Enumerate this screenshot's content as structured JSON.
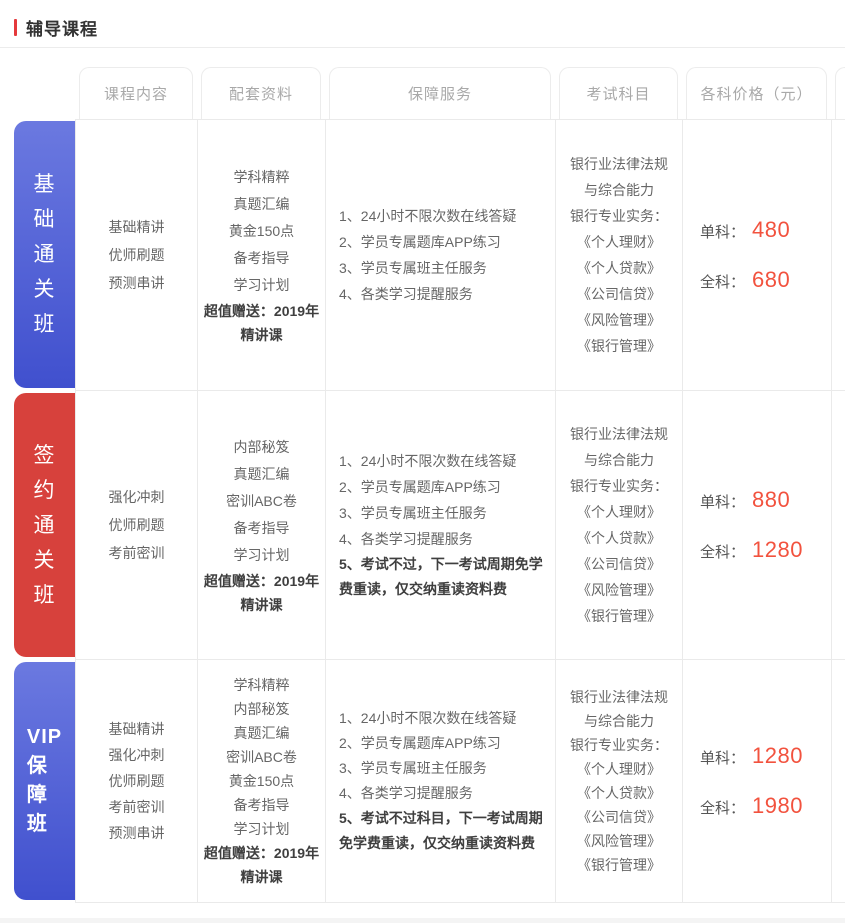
{
  "page": {
    "title": "辅导课程"
  },
  "colors": {
    "accent_red": "#e5393c",
    "price_red": "#f2523e",
    "blue_gradient_start": "#6b79e0",
    "blue_gradient_end": "#4050ce",
    "red_block": "#d7413c",
    "border_gray": "#eaeaea",
    "header_text": "#a9a9a9",
    "body_text": "#666666",
    "bold_text": "#3f3f3f"
  },
  "table": {
    "headers": {
      "course": "课程内容",
      "materials": "配套资料",
      "services": "保障服务",
      "subjects": "考试科目",
      "prices": "各科价格（元）"
    },
    "rows": [
      {
        "label": "基础通关班",
        "label_lines": [
          "基",
          "础",
          "通",
          "关",
          "班"
        ],
        "theme": "blue",
        "course_content": [
          "基础精讲",
          "优师刷题",
          "预测串讲"
        ],
        "materials": [
          "学科精粹",
          "真题汇编",
          "黄金150点",
          "备考指导",
          "学习计划"
        ],
        "materials_bonus": "超值赠送：2019年精讲课",
        "services": [
          "1、24小时不限次数在线答疑",
          "2、学员专属题库APP练习",
          "3、学员专属班主任服务",
          "4、各类学习提醒服务"
        ],
        "services_bold": "",
        "subjects": [
          "银行业法律法规",
          "与综合能力",
          "银行专业实务：",
          "《个人理财》",
          "《个人贷款》",
          "《公司信贷》",
          "《风险管理》",
          "《银行管理》"
        ],
        "price_single_label": "单科：",
        "price_single": "480",
        "price_full_label": "全科：",
        "price_full": "680"
      },
      {
        "label": "签约通关班",
        "label_lines": [
          "签",
          "约",
          "通",
          "关",
          "班"
        ],
        "theme": "red",
        "course_content": [
          "强化冲刺",
          "优师刷题",
          "考前密训"
        ],
        "materials": [
          "内部秘笈",
          "真题汇编",
          "密训ABC卷",
          "备考指导",
          "学习计划"
        ],
        "materials_bonus": "超值赠送：2019年精讲课",
        "services": [
          "1、24小时不限次数在线答疑",
          "2、学员专属题库APP练习",
          "3、学员专属班主任服务",
          "4、各类学习提醒服务"
        ],
        "services_bold": "5、考试不过，下一考试周期免学费重读，仅交纳重读资料费",
        "subjects": [
          "银行业法律法规",
          "与综合能力",
          "银行专业实务：",
          "《个人理财》",
          "《个人贷款》",
          "《公司信贷》",
          "《风险管理》",
          "《银行管理》"
        ],
        "price_single_label": "单科：",
        "price_single": "880",
        "price_full_label": "全科：",
        "price_full": "1280"
      },
      {
        "label": "VIP保障班",
        "label_lines": [
          "VIP",
          "保",
          "障",
          "班"
        ],
        "theme": "blue",
        "course_content": [
          "基础精讲",
          "强化冲刺",
          "优师刷题",
          "考前密训",
          "预测串讲"
        ],
        "materials": [
          "学科精粹",
          "内部秘笈",
          "真题汇编",
          "密训ABC卷",
          "黄金150点",
          "备考指导",
          "学习计划"
        ],
        "materials_bonus": "超值赠送：2019年精讲课",
        "services": [
          "1、24小时不限次数在线答疑",
          "2、学员专属题库APP练习",
          "3、学员专属班主任服务",
          "4、各类学习提醒服务"
        ],
        "services_bold": "5、考试不过科目，下一考试周期免学费重读，仅交纳重读资料费",
        "subjects": [
          "银行业法律法规",
          "与综合能力",
          "银行专业实务：",
          "《个人理财》",
          "《个人贷款》",
          "《公司信贷》",
          "《风险管理》",
          "《银行管理》"
        ],
        "price_single_label": "单科：",
        "price_single": "1280",
        "price_full_label": "全科：",
        "price_full": "1980"
      }
    ]
  }
}
